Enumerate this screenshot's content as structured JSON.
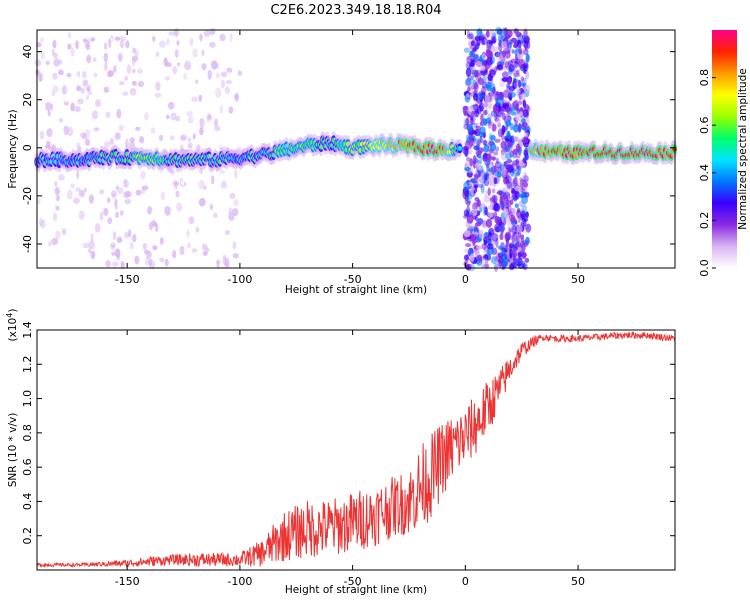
{
  "title": "C2E6.2023.349.18.18.R04",
  "chart_data": [
    {
      "type": "heatmap",
      "xlabel": "Height of straight line (km)",
      "ylabel": "Frequency (Hz)",
      "xlim": [
        -190,
        93
      ],
      "ylim": [
        -50,
        49
      ],
      "x_ticks": [
        -150,
        -100,
        -50,
        0,
        50
      ],
      "y_ticks": [
        -40,
        -20,
        0,
        20,
        40
      ],
      "colorbar": {
        "label": "Normalized spectral amplitude",
        "range": [
          0,
          1
        ],
        "ticks": [
          0.0,
          0.2,
          0.4,
          0.6,
          0.8
        ],
        "colors": [
          "#ffffff",
          "#d9b5f2",
          "#8a2be2",
          "#3a00ff",
          "#0077ff",
          "#00e5ff",
          "#00ff66",
          "#9cff00",
          "#ffff00",
          "#ff9900",
          "#ff2200",
          "#ff0088"
        ]
      },
      "ridge": {
        "x": [
          -190,
          -180,
          -170,
          -160,
          -150,
          -140,
          -130,
          -120,
          -110,
          -100,
          -90,
          -80,
          -70,
          -60,
          -50,
          -40,
          -30,
          -20,
          -10,
          -3,
          30,
          40,
          60,
          80,
          93
        ],
        "y": [
          -5,
          -5,
          -5,
          -4,
          -4,
          -4,
          -5,
          -5,
          -5,
          -4,
          -3,
          -1,
          1,
          2,
          0,
          1,
          1,
          0,
          -1,
          0,
          -1,
          -2,
          -2,
          -2,
          -2
        ],
        "amplitude": [
          0.4,
          0.45,
          0.4,
          0.5,
          0.5,
          0.6,
          0.5,
          0.5,
          0.5,
          0.4,
          0.5,
          0.55,
          0.55,
          0.5,
          0.6,
          0.7,
          0.8,
          0.95,
          0.9,
          0.5,
          0.8,
          0.9,
          0.95,
          0.95,
          0.9
        ]
      },
      "noise_bands": [
        {
          "x_range": [
            0,
            28
          ],
          "y_range": [
            -50,
            49
          ],
          "amplitude": 0.3
        },
        {
          "x_range": [
            -190,
            -100
          ],
          "y_range": [
            -50,
            49
          ],
          "amplitude": 0.1
        }
      ]
    },
    {
      "type": "line",
      "xlabel": "Height of straight line (km)",
      "ylabel": "SNR (10 * v/v)",
      "y_scale_label": "(x10",
      "y_scale_exponent": "4",
      "y_scale_suffix": ")",
      "xlim": [
        -190,
        93
      ],
      "ylim": [
        0,
        1.4
      ],
      "x_ticks": [
        -150,
        -100,
        -50,
        0,
        50
      ],
      "y_ticks": [
        0.2,
        0.4,
        0.6,
        0.8,
        1.0,
        1.2,
        1.4
      ],
      "line_color": "#ee3333",
      "series": [
        {
          "x": [
            -190,
            -170,
            -150,
            -140,
            -130,
            -120,
            -110,
            -100,
            -90,
            -85,
            -80,
            -75,
            -70,
            -65,
            -60,
            -55,
            -50,
            -45,
            -40,
            -35,
            -30,
            -25,
            -20,
            -15,
            -10,
            -5,
            0,
            5,
            10,
            15,
            20,
            25,
            30,
            35,
            40,
            50,
            60,
            70,
            80,
            93
          ],
          "y": [
            0.03,
            0.03,
            0.04,
            0.05,
            0.06,
            0.06,
            0.06,
            0.06,
            0.1,
            0.15,
            0.2,
            0.22,
            0.24,
            0.24,
            0.25,
            0.26,
            0.28,
            0.3,
            0.32,
            0.35,
            0.38,
            0.4,
            0.48,
            0.55,
            0.65,
            0.72,
            0.78,
            0.85,
            0.95,
            1.05,
            1.18,
            1.28,
            1.33,
            1.36,
            1.35,
            1.35,
            1.36,
            1.37,
            1.37,
            1.35
          ],
          "noise": [
            0.01,
            0.01,
            0.02,
            0.03,
            0.03,
            0.04,
            0.04,
            0.04,
            0.08,
            0.12,
            0.15,
            0.16,
            0.17,
            0.17,
            0.17,
            0.17,
            0.18,
            0.18,
            0.18,
            0.18,
            0.18,
            0.2,
            0.25,
            0.25,
            0.22,
            0.2,
            0.18,
            0.18,
            0.16,
            0.12,
            0.08,
            0.05,
            0.03,
            0.02,
            0.02,
            0.02,
            0.02,
            0.02,
            0.02,
            0.02
          ]
        }
      ]
    }
  ]
}
